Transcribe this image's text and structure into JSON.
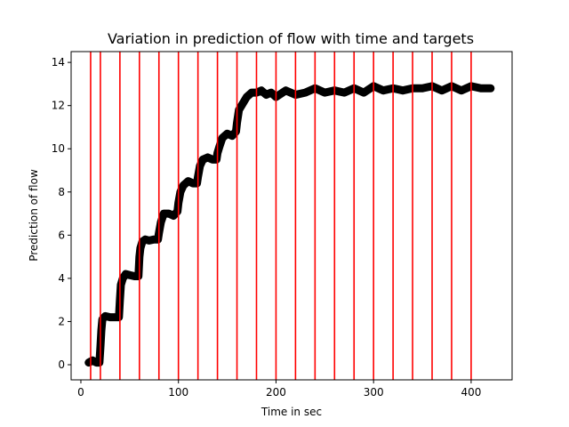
{
  "chart_data": {
    "type": "line",
    "title": "Variation in prediction of flow with time and targets",
    "xlabel": "Time in sec",
    "ylabel": "Prediction of flow",
    "xlim": [
      -10,
      442
    ],
    "ylim": [
      -0.7,
      14.5
    ],
    "xticks": [
      0,
      100,
      200,
      300,
      400
    ],
    "yticks": [
      0,
      2,
      4,
      6,
      8,
      10,
      12,
      14
    ],
    "grid": false,
    "series_color": "#000000",
    "target_color": "#ff0000",
    "target_lines_x": [
      10,
      20,
      40,
      60,
      80,
      100,
      120,
      140,
      160,
      180,
      200,
      220,
      240,
      260,
      280,
      300,
      320,
      340,
      360,
      380,
      400
    ],
    "series": [
      {
        "x": [
          8,
          12,
          16,
          19,
          20,
          21,
          22,
          25,
          30,
          36,
          39,
          40,
          41,
          43,
          46,
          50,
          55,
          59,
          60,
          61,
          63,
          66,
          70,
          75,
          79,
          80,
          82,
          85,
          90,
          95,
          99,
          100,
          102,
          105,
          110,
          115,
          119,
          120,
          122,
          125,
          130,
          135,
          139,
          140,
          142,
          145,
          150,
          155,
          159,
          160,
          162,
          166,
          170,
          175,
          180,
          185,
          190,
          195,
          200,
          210,
          220,
          230,
          240,
          250,
          260,
          270,
          280,
          290,
          300,
          310,
          320,
          330,
          340,
          350,
          360,
          370,
          380,
          390,
          400,
          410,
          420
        ],
        "y": [
          0.1,
          0.2,
          0.1,
          0.1,
          0.8,
          1.6,
          2.1,
          2.25,
          2.2,
          2.2,
          2.2,
          3.0,
          3.7,
          4.0,
          4.2,
          4.15,
          4.1,
          4.1,
          5.0,
          5.4,
          5.7,
          5.8,
          5.75,
          5.8,
          5.8,
          6.1,
          6.6,
          7.0,
          7.0,
          6.9,
          7.1,
          7.5,
          8.0,
          8.3,
          8.5,
          8.4,
          8.4,
          8.7,
          9.2,
          9.5,
          9.6,
          9.5,
          9.5,
          9.8,
          10.1,
          10.5,
          10.7,
          10.6,
          10.8,
          11.2,
          11.8,
          12.1,
          12.4,
          12.6,
          12.6,
          12.7,
          12.5,
          12.6,
          12.4,
          12.7,
          12.5,
          12.6,
          12.8,
          12.6,
          12.7,
          12.6,
          12.8,
          12.6,
          12.9,
          12.7,
          12.8,
          12.7,
          12.8,
          12.8,
          12.9,
          12.7,
          12.9,
          12.7,
          12.9,
          12.8,
          12.8
        ]
      }
    ]
  }
}
